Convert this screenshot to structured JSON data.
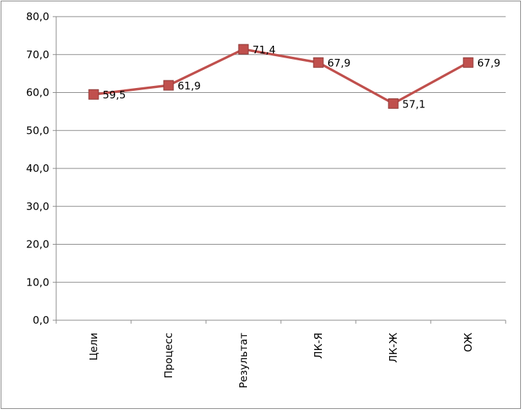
{
  "chart_data": {
    "type": "line",
    "categories": [
      "Цели",
      "Процесс",
      "Результат",
      "ЛК-Я",
      "ЛК-Ж",
      "ОЖ"
    ],
    "values": [
      59.5,
      61.9,
      71.4,
      67.9,
      57.1,
      67.9
    ],
    "value_labels": [
      "59,5",
      "61,9",
      "71,4",
      "67,9",
      "57,1",
      "67,9"
    ],
    "y_ticks": [
      "0,0",
      "10,0",
      "20,0",
      "30,0",
      "40,0",
      "50,0",
      "60,0",
      "70,0",
      "80,0"
    ],
    "ylim": [
      0,
      80
    ],
    "y_step": 10,
    "grid": true,
    "legend": "none",
    "colors": {
      "line": "#C0504D",
      "marker": "#C0504D",
      "marker_edge": "#8C3836",
      "grid": "#878787",
      "axis": "#878787"
    }
  }
}
